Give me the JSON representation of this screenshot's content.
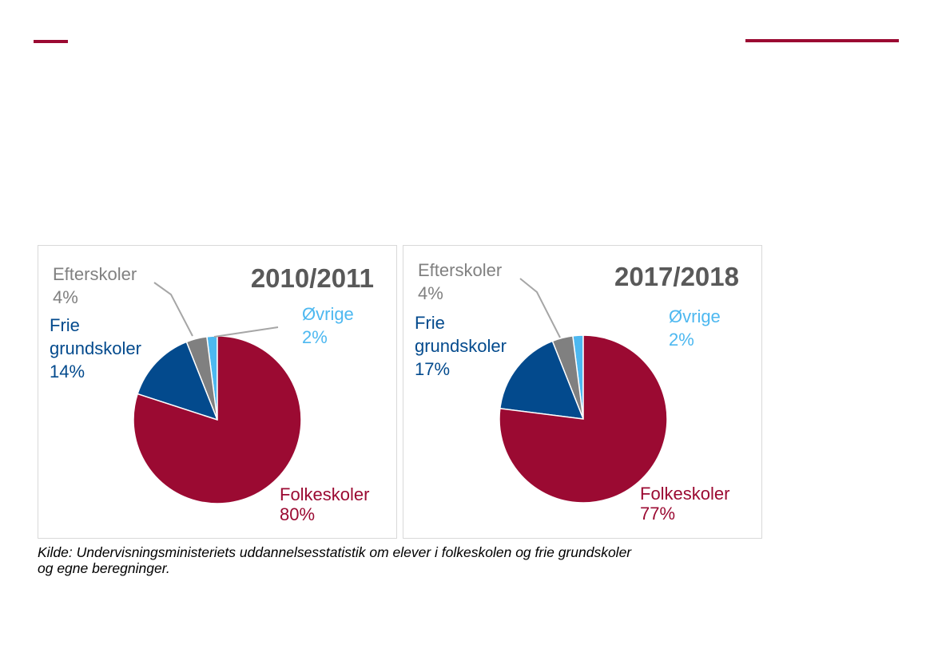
{
  "source": {
    "line1": "Kilde: Undervisningsministeriets uddannelsesstatistik om elever i folkeskolen og frie grundskoler",
    "line2": "og egne beregninger."
  },
  "colors": {
    "accent": "#9b0a32",
    "folkeskoler": "#9b0a32",
    "frie": "#034a8d",
    "efterskoler": "#808080",
    "ovrige": "#4db8f0",
    "panel_border": "#d9d9d9",
    "title": "#595959"
  },
  "chart_data": [
    {
      "type": "pie",
      "title": "2010/2011",
      "slices": [
        {
          "key": "folkeskoler",
          "label": "Folkeskoler",
          "value": 80,
          "pct": "80%",
          "color": "#9b0a32"
        },
        {
          "key": "frie",
          "label": [
            "Frie",
            "grundskoler"
          ],
          "value": 14,
          "pct": "14%",
          "color": "#034a8d"
        },
        {
          "key": "efterskoler",
          "label": "Efterskoler",
          "value": 4,
          "pct": "4%",
          "color": "#808080"
        },
        {
          "key": "ovrige",
          "label": "Øvrige",
          "value": 2,
          "pct": "2%",
          "color": "#4db8f0"
        }
      ]
    },
    {
      "type": "pie",
      "title": "2017/2018",
      "slices": [
        {
          "key": "folkeskoler",
          "label": "Folkeskoler",
          "value": 77,
          "pct": "77%",
          "color": "#9b0a32"
        },
        {
          "key": "frie",
          "label": [
            "Frie",
            "grundskoler"
          ],
          "value": 17,
          "pct": "17%",
          "color": "#034a8d"
        },
        {
          "key": "efterskoler",
          "label": "Efterskoler",
          "value": 4,
          "pct": "4%",
          "color": "#808080"
        },
        {
          "key": "ovrige",
          "label": "Øvrige",
          "value": 2,
          "pct": "2%",
          "color": "#4db8f0"
        }
      ]
    }
  ]
}
